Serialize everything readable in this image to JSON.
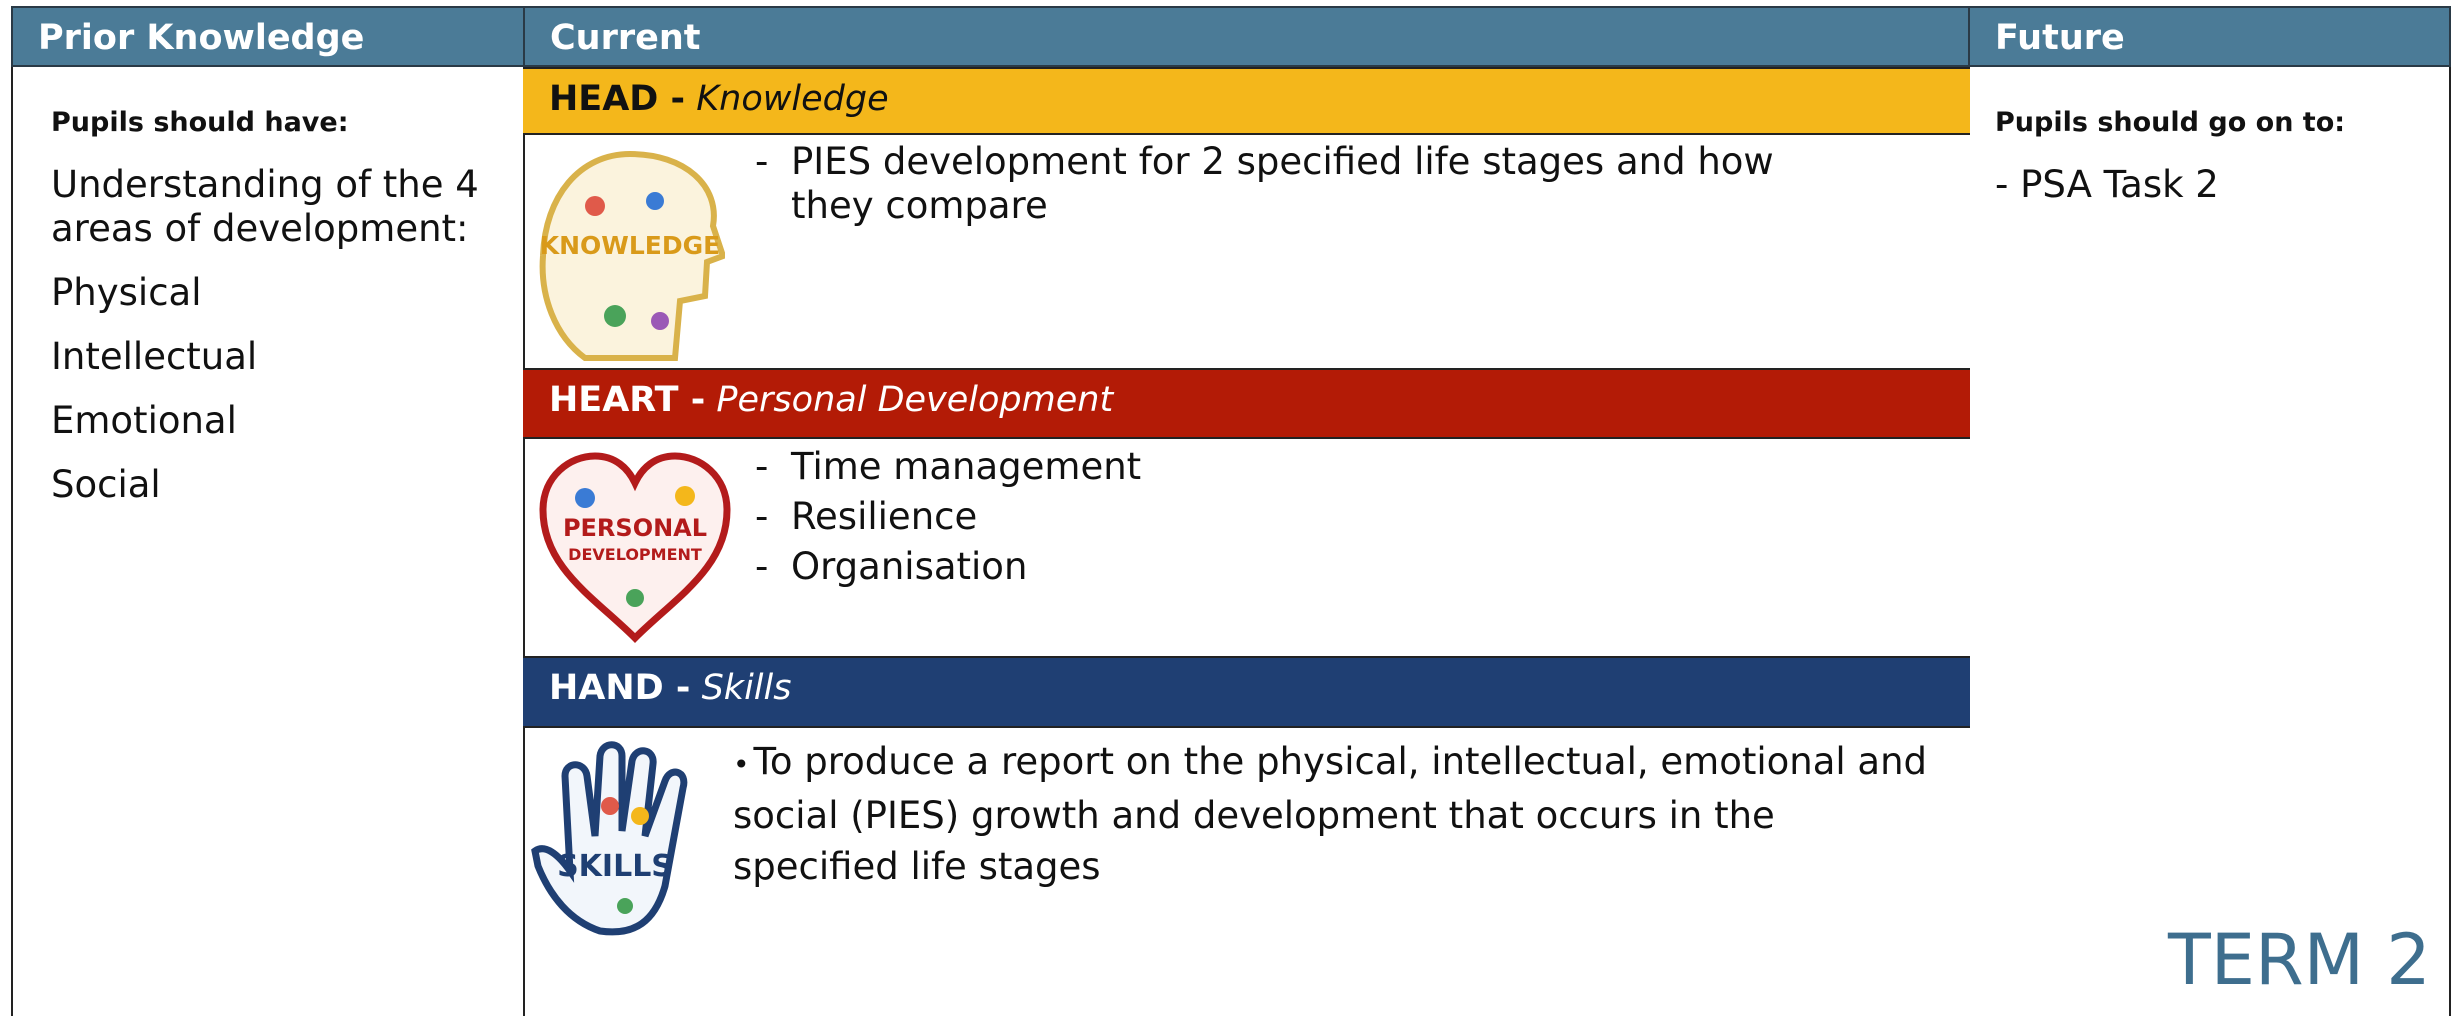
{
  "columns": {
    "prior": "Prior Knowledge",
    "current": "Current",
    "future": "Future"
  },
  "prior": {
    "heading": "Pupils should have:",
    "items": [
      "Understanding of the 4 areas of development:",
      "Physical",
      "Intellectual",
      "Emotional",
      "Social"
    ]
  },
  "current": {
    "head": {
      "label": "HEAD -",
      "subtitle": "Knowledge",
      "icon": "KNOWLEDGE",
      "items": [
        "PIES development for 2 specified life stages and how they compare"
      ]
    },
    "heart": {
      "label": "HEART -",
      "subtitle": "Personal Development",
      "icon": [
        "PERSONAL",
        "DEVELOPMENT"
      ],
      "items": [
        "Time management",
        "Resilience",
        "Organisation"
      ]
    },
    "hand": {
      "label": "HAND -",
      "subtitle": "Skills",
      "icon": "SKILLS",
      "items": [
        "To produce a report on the physical, intellectual, emotional and social (PIES) growth and  development that occurs in the specified life stages"
      ]
    }
  },
  "future": {
    "heading": "Pupils should go on to:",
    "items": [
      "- PSA Task 2"
    ]
  },
  "term": "TERM 2"
}
